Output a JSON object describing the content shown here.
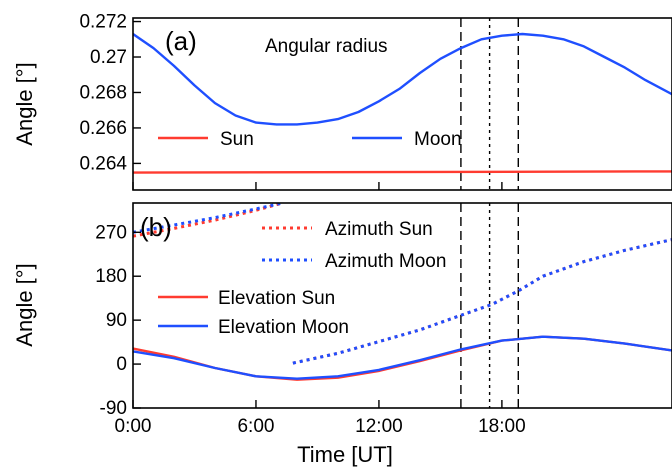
{
  "chart_data": [
    {
      "panel_label": "(a)",
      "type": "line",
      "annotation": "Angular radius",
      "xlabel": "",
      "ylabel": "Angle [°]",
      "xlim": [
        0,
        26.3
      ],
      "ylim": [
        0.2625,
        0.2722
      ],
      "yticks": [
        0.264,
        0.266,
        0.268,
        0.27,
        0.272
      ],
      "ytick_labels": [
        "0.264",
        "0.266",
        "0.268",
        "0.27",
        "0.272"
      ],
      "xticks": [
        0,
        6,
        12,
        18
      ],
      "grid": false,
      "legend_position": "lower-middle",
      "series": [
        {
          "name": "Sun",
          "color": "#ff3b30",
          "dash": "solid",
          "x": [
            0,
            26.3
          ],
          "y": [
            0.26348,
            0.26355
          ]
        },
        {
          "name": "Moon",
          "color": "#1f4fff",
          "dash": "solid",
          "x": [
            0,
            1,
            2,
            3,
            4,
            5,
            6,
            7,
            8,
            9,
            10,
            11,
            12,
            13,
            14,
            15,
            16,
            17,
            18,
            19,
            20,
            21,
            22,
            23,
            24,
            25,
            26.3
          ],
          "y": [
            0.2713,
            0.2705,
            0.2695,
            0.2684,
            0.2674,
            0.2667,
            0.2663,
            0.2662,
            0.2662,
            0.2663,
            0.2665,
            0.2669,
            0.2675,
            0.2682,
            0.2691,
            0.2699,
            0.2705,
            0.271,
            0.2712,
            0.2713,
            0.2712,
            0.271,
            0.2706,
            0.27,
            0.2694,
            0.2687,
            0.2679
          ]
        }
      ],
      "vlines": [
        {
          "x": 16.0,
          "style": "dashed"
        },
        {
          "x": 17.4,
          "style": "dotted"
        },
        {
          "x": 18.8,
          "style": "dashed"
        }
      ]
    },
    {
      "panel_label": "(b)",
      "type": "line",
      "xlabel": "Time [UT]",
      "ylabel": "Angle [°]",
      "xlim": [
        0,
        26.3
      ],
      "ylim": [
        -90,
        330
      ],
      "yticks": [
        -90,
        0,
        90,
        180,
        270
      ],
      "ytick_labels": [
        "-90",
        "0",
        "90",
        "180",
        "270"
      ],
      "xticks": [
        0,
        6,
        12,
        18
      ],
      "xtick_labels": [
        "0:00",
        "6:00",
        "12:00",
        "18:00"
      ],
      "grid": false,
      "legend_position": "upper-middle",
      "series": [
        {
          "name": "Azimuth Sun",
          "color": "#ff3b30",
          "dash": "dotted",
          "segments": [
            {
              "x": [
                0,
                2,
                4,
                6,
                7.3
              ],
              "y": [
                262,
                278,
                295,
                315,
                330
              ]
            },
            {
              "x": [
                7.8,
                10,
                12,
                14,
                16,
                17.5,
                18.8,
                20,
                22,
                24,
                26.3
              ],
              "y": [
                2,
                22,
                46,
                70,
                100,
                122,
                150,
                180,
                210,
                233,
                255
              ]
            }
          ]
        },
        {
          "name": "Azimuth Moon",
          "color": "#1f4fff",
          "dash": "dotted",
          "segments": [
            {
              "x": [
                0,
                2,
                4,
                6,
                7.3
              ],
              "y": [
                270,
                285,
                300,
                318,
                330
              ]
            },
            {
              "x": [
                7.8,
                10,
                12,
                14,
                16,
                17.5,
                18.8,
                20,
                22,
                24,
                26.3
              ],
              "y": [
                2,
                22,
                46,
                70,
                100,
                122,
                150,
                180,
                210,
                233,
                255
              ]
            }
          ]
        },
        {
          "name": "Elevation Sun",
          "color": "#ff3b30",
          "dash": "solid",
          "x": [
            0,
            2,
            4,
            6,
            8,
            10,
            12,
            14,
            16,
            18,
            20,
            22,
            24,
            26.3
          ],
          "y": [
            32,
            15,
            -8,
            -25,
            -32,
            -28,
            -14,
            6,
            28,
            48,
            56,
            52,
            42,
            28
          ]
        },
        {
          "name": "Elevation Moon",
          "color": "#1f4fff",
          "dash": "solid",
          "x": [
            0,
            2,
            4,
            6,
            8,
            10,
            12,
            14,
            16,
            18,
            20,
            22,
            24,
            26.3
          ],
          "y": [
            26,
            12,
            -8,
            -25,
            -30,
            -25,
            -12,
            8,
            30,
            48,
            56,
            52,
            42,
            28
          ]
        }
      ],
      "vlines": [
        {
          "x": 16.0,
          "style": "dashed"
        },
        {
          "x": 17.4,
          "style": "dotted"
        },
        {
          "x": 18.8,
          "style": "dashed"
        }
      ]
    }
  ]
}
